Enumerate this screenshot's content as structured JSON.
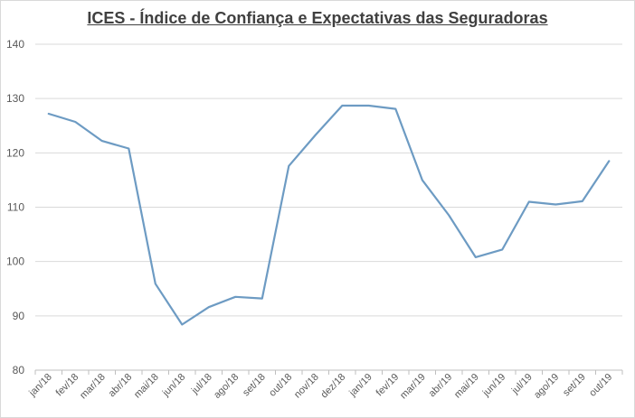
{
  "chart_data": {
    "type": "line",
    "title": "ICES - Índice de Confiança e Expectativas das Seguradoras",
    "xlabel": "",
    "ylabel": "",
    "ylim": [
      80,
      140
    ],
    "yticks": [
      80,
      90,
      100,
      110,
      120,
      130,
      140
    ],
    "grid": true,
    "legend": "none",
    "categories": [
      "jan/18",
      "fev/18",
      "mar/18",
      "abr/18",
      "mai/18",
      "jun/18",
      "jul/18",
      "ago/18",
      "set/18",
      "out/18",
      "nov/18",
      "dez/18",
      "jan/19",
      "fev/19",
      "mar/19",
      "abr/19",
      "mai/19",
      "jun/19",
      "jul/19",
      "ago/19",
      "set/19",
      "out/19"
    ],
    "series": [
      {
        "values": [
          127.2,
          125.7,
          122.2,
          120.8,
          95.9,
          88.4,
          91.6,
          93.5,
          93.2,
          117.6,
          123.3,
          128.7,
          128.7,
          128.1,
          115.0,
          108.5,
          100.8,
          102.2,
          111.0,
          110.5,
          111.1,
          118.5
        ]
      }
    ],
    "colors": {
      "line": "#6d9bc3",
      "grid": "#d9d9d9",
      "axis": "#bfbfbf"
    }
  }
}
